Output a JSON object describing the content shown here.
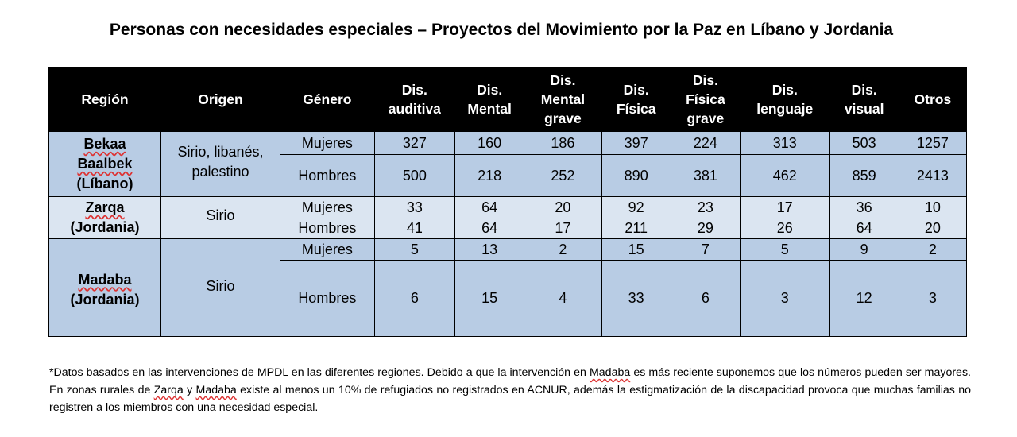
{
  "title": "Personas con necesidades especiales – Proyectos del Movimiento por la Paz en Líbano y Jordania",
  "table": {
    "headers": {
      "region": "Región",
      "origen": "Origen",
      "genero": "Género",
      "auditiva": [
        "Dis.",
        "auditiva"
      ],
      "mental": [
        "Dis.",
        "Mental"
      ],
      "mental_grave": [
        "Dis.",
        "Mental",
        "grave"
      ],
      "fisica": [
        "Dis.",
        "Física"
      ],
      "fisica_grave": [
        "Dis.",
        "Física",
        "grave"
      ],
      "lenguaje": [
        "Dis.",
        "lenguaje"
      ],
      "visual": [
        "Dis.",
        "visual"
      ],
      "otros": "Otros"
    },
    "groups": [
      {
        "region_lines": [
          "Bekaa",
          "Baalbek",
          "(Líbano)"
        ],
        "origen_lines": [
          "Sirio, libanés,",
          "palestino"
        ],
        "rows": [
          {
            "genero": "Mujeres",
            "values": [
              "327",
              "160",
              "186",
              "397",
              "224",
              "313",
              "503",
              "1257"
            ]
          },
          {
            "genero": "Hombres",
            "values": [
              "500",
              "218",
              "252",
              "890",
              "381",
              "462",
              "859",
              "2413"
            ]
          }
        ]
      },
      {
        "region_lines": [
          "Zarqa",
          "(Jordania)"
        ],
        "origen_lines": [
          "Sirio"
        ],
        "rows": [
          {
            "genero": "Mujeres",
            "values": [
              "33",
              "64",
              "20",
              "92",
              "23",
              "17",
              "36",
              "10"
            ]
          },
          {
            "genero": "Hombres",
            "values": [
              "41",
              "64",
              "17",
              "211",
              "29",
              "26",
              "64",
              "20"
            ]
          }
        ]
      },
      {
        "region_lines": [
          "Madaba",
          "(Jordania)"
        ],
        "origen_lines": [
          "Sirio"
        ],
        "rows": [
          {
            "genero": "Mujeres",
            "values": [
              "5",
              "13",
              "2",
              "15",
              "7",
              "5",
              "9",
              "2"
            ]
          },
          {
            "genero": "Hombres",
            "values": [
              "6",
              "15",
              "4",
              "33",
              "6",
              "3",
              "12",
              "3"
            ]
          }
        ]
      }
    ]
  },
  "note": {
    "p1": "*Datos basados en las intervenciones de MPDL en las diferentes regiones. Debido a que la intervención en ",
    "w1": "Madaba",
    "p2": " es más reciente suponemos que los números pueden ser mayores. En zonas rurales de ",
    "w2": "Zarqa",
    "p3": " y ",
    "w3": "Madaba",
    "p4": " existe al menos un 10% de refugiados no registrados en ACNUR, además la estigmatización de la discapacidad provoca que muchas familias no registren a los miembros con una necesidad especial."
  }
}
